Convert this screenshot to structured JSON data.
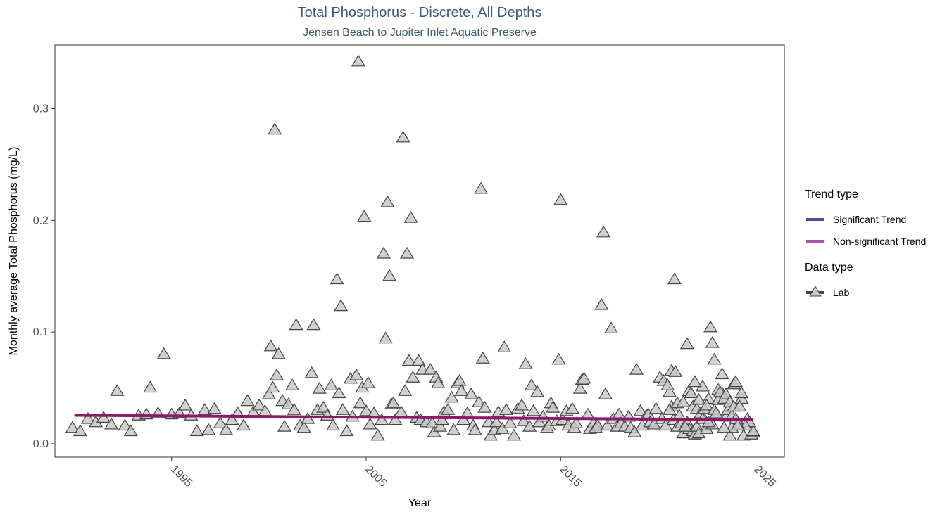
{
  "chart_data": {
    "type": "scatter",
    "title": "Total Phosphorus - Discrete, All Depths",
    "subtitle": "Jensen Beach to Jupiter Inlet Aquatic Preserve",
    "xlabel": "Year",
    "ylabel": "Monthly average Total Phosphorus (mg/L)",
    "xlim": [
      1989.0,
      2026.5
    ],
    "ylim": [
      -0.012,
      0.357
    ],
    "xticks": [
      "1995",
      "2005",
      "2015",
      "2025"
    ],
    "yticks": [
      "0.0",
      "0.1",
      "0.2",
      "0.3"
    ],
    "grid": false,
    "legend_position": "right",
    "trend_line": {
      "name": "Non-significant Trend",
      "color": "#8c1a6b",
      "x": [
        1990.0,
        2024.9
      ],
      "y": [
        0.0255,
        0.0215
      ]
    },
    "series": [
      {
        "name": "Lab",
        "marker": "triangle",
        "fill": "#c8c8c8",
        "stroke": "#444444",
        "points": [
          [
            1989.9,
            0.014
          ],
          [
            1990.3,
            0.011
          ],
          [
            1990.7,
            0.022
          ],
          [
            1991.1,
            0.019
          ],
          [
            1991.5,
            0.023
          ],
          [
            1991.9,
            0.017
          ],
          [
            1992.2,
            0.047
          ],
          [
            1992.6,
            0.016
          ],
          [
            1992.9,
            0.011
          ],
          [
            1993.3,
            0.025
          ],
          [
            1993.7,
            0.026
          ],
          [
            1993.9,
            0.05
          ],
          [
            1994.3,
            0.027
          ],
          [
            1994.6,
            0.08
          ],
          [
            1995.0,
            0.026
          ],
          [
            1995.4,
            0.027
          ],
          [
            1995.7,
            0.034
          ],
          [
            1996.0,
            0.025
          ],
          [
            1996.3,
            0.011
          ],
          [
            1996.7,
            0.03
          ],
          [
            1996.9,
            0.012
          ],
          [
            1997.2,
            0.031
          ],
          [
            1997.5,
            0.018
          ],
          [
            1997.8,
            0.012
          ],
          [
            1998.1,
            0.021
          ],
          [
            1998.4,
            0.027
          ],
          [
            1998.7,
            0.016
          ],
          [
            1998.9,
            0.038
          ],
          [
            1999.2,
            0.028
          ],
          [
            1999.5,
            0.034
          ],
          [
            1999.8,
            0.029
          ],
          [
            2000.0,
            0.044
          ],
          [
            2000.1,
            0.087
          ],
          [
            2000.2,
            0.05
          ],
          [
            2000.3,
            0.281
          ],
          [
            2000.4,
            0.061
          ],
          [
            2000.5,
            0.08
          ],
          [
            2000.7,
            0.038
          ],
          [
            2000.8,
            0.015
          ],
          [
            2001.0,
            0.035
          ],
          [
            2001.2,
            0.052
          ],
          [
            2001.3,
            0.03
          ],
          [
            2001.4,
            0.106
          ],
          [
            2001.6,
            0.016
          ],
          [
            2001.8,
            0.014
          ],
          [
            2002.0,
            0.022
          ],
          [
            2002.2,
            0.063
          ],
          [
            2002.3,
            0.106
          ],
          [
            2002.5,
            0.03
          ],
          [
            2002.6,
            0.049
          ],
          [
            2002.8,
            0.032
          ],
          [
            2003.0,
            0.025
          ],
          [
            2003.2,
            0.052
          ],
          [
            2003.3,
            0.016
          ],
          [
            2003.5,
            0.147
          ],
          [
            2003.6,
            0.045
          ],
          [
            2003.7,
            0.123
          ],
          [
            2003.8,
            0.03
          ],
          [
            2004.0,
            0.011
          ],
          [
            2004.2,
            0.058
          ],
          [
            2004.3,
            0.024
          ],
          [
            2004.5,
            0.061
          ],
          [
            2004.6,
            0.342
          ],
          [
            2004.7,
            0.036
          ],
          [
            2004.8,
            0.05
          ],
          [
            2004.9,
            0.203
          ],
          [
            2005.0,
            0.029
          ],
          [
            2005.1,
            0.054
          ],
          [
            2005.2,
            0.017
          ],
          [
            2005.4,
            0.027
          ],
          [
            2005.6,
            0.007
          ],
          [
            2005.8,
            0.021
          ],
          [
            2005.9,
            0.17
          ],
          [
            2006.0,
            0.094
          ],
          [
            2006.1,
            0.216
          ],
          [
            2006.2,
            0.15
          ],
          [
            2006.3,
            0.035
          ],
          [
            2006.4,
            0.036
          ],
          [
            2006.5,
            0.021
          ],
          [
            2006.8,
            0.028
          ],
          [
            2006.9,
            0.274
          ],
          [
            2007.0,
            0.047
          ],
          [
            2007.1,
            0.17
          ],
          [
            2007.2,
            0.074
          ],
          [
            2007.3,
            0.202
          ],
          [
            2007.4,
            0.059
          ],
          [
            2007.6,
            0.023
          ],
          [
            2007.7,
            0.074
          ],
          [
            2007.8,
            0.021
          ],
          [
            2007.9,
            0.066
          ],
          [
            2008.1,
            0.019
          ],
          [
            2008.3,
            0.066
          ],
          [
            2008.4,
            0.018
          ],
          [
            2008.5,
            0.01
          ],
          [
            2008.6,
            0.059
          ],
          [
            2008.7,
            0.054
          ],
          [
            2008.8,
            0.015
          ],
          [
            2008.9,
            0.021
          ],
          [
            2009.0,
            0.028
          ],
          [
            2009.2,
            0.03
          ],
          [
            2009.4,
            0.041
          ],
          [
            2009.5,
            0.012
          ],
          [
            2009.7,
            0.054
          ],
          [
            2009.8,
            0.056
          ],
          [
            2009.9,
            0.047
          ],
          [
            2010.0,
            0.021
          ],
          [
            2010.2,
            0.027
          ],
          [
            2010.4,
            0.044
          ],
          [
            2010.5,
            0.016
          ],
          [
            2010.6,
            0.012
          ],
          [
            2010.8,
            0.037
          ],
          [
            2010.9,
            0.228
          ],
          [
            2011.0,
            0.076
          ],
          [
            2011.1,
            0.032
          ],
          [
            2011.3,
            0.019
          ],
          [
            2011.4,
            0.007
          ],
          [
            2011.6,
            0.012
          ],
          [
            2011.7,
            0.019
          ],
          [
            2011.8,
            0.028
          ],
          [
            2012.0,
            0.013
          ],
          [
            2012.1,
            0.086
          ],
          [
            2012.2,
            0.03
          ],
          [
            2012.4,
            0.018
          ],
          [
            2012.6,
            0.007
          ],
          [
            2012.8,
            0.031
          ],
          [
            2013.0,
            0.034
          ],
          [
            2013.1,
            0.02
          ],
          [
            2013.2,
            0.071
          ],
          [
            2013.4,
            0.015
          ],
          [
            2013.5,
            0.052
          ],
          [
            2013.6,
            0.029
          ],
          [
            2013.8,
            0.046
          ],
          [
            2013.9,
            0.019
          ],
          [
            2014.1,
            0.024
          ],
          [
            2014.3,
            0.014
          ],
          [
            2014.4,
            0.016
          ],
          [
            2014.5,
            0.036
          ],
          [
            2014.6,
            0.032
          ],
          [
            2014.8,
            0.02
          ],
          [
            2014.9,
            0.075
          ],
          [
            2015.0,
            0.218
          ],
          [
            2015.1,
            0.021
          ],
          [
            2015.3,
            0.029
          ],
          [
            2015.4,
            0.016
          ],
          [
            2015.6,
            0.031
          ],
          [
            2015.7,
            0.014
          ],
          [
            2015.8,
            0.018
          ],
          [
            2016.0,
            0.049
          ],
          [
            2016.1,
            0.057
          ],
          [
            2016.2,
            0.058
          ],
          [
            2016.4,
            0.026
          ],
          [
            2016.5,
            0.013
          ],
          [
            2016.7,
            0.018
          ],
          [
            2016.8,
            0.014
          ],
          [
            2016.9,
            0.016
          ],
          [
            2017.1,
            0.124
          ],
          [
            2017.2,
            0.189
          ],
          [
            2017.3,
            0.044
          ],
          [
            2017.4,
            0.016
          ],
          [
            2017.6,
            0.103
          ],
          [
            2017.7,
            0.022
          ],
          [
            2017.9,
            0.015
          ],
          [
            2018.0,
            0.026
          ],
          [
            2018.1,
            0.018
          ],
          [
            2018.3,
            0.015
          ],
          [
            2018.5,
            0.024
          ],
          [
            2018.6,
            0.014
          ],
          [
            2018.8,
            0.01
          ],
          [
            2018.9,
            0.066
          ],
          [
            2019.1,
            0.029
          ],
          [
            2019.2,
            0.016
          ],
          [
            2019.4,
            0.025
          ],
          [
            2019.5,
            0.026
          ],
          [
            2019.6,
            0.019
          ],
          [
            2019.8,
            0.017
          ],
          [
            2019.9,
            0.031
          ],
          [
            2020.1,
            0.059
          ],
          [
            2020.2,
            0.022
          ],
          [
            2020.3,
            0.056
          ],
          [
            2020.4,
            0.016
          ],
          [
            2020.6,
            0.046
          ],
          [
            2020.7,
            0.033
          ],
          [
            2020.8,
            0.021
          ],
          [
            2021.0,
            0.015
          ],
          [
            2021.2,
            0.018
          ],
          [
            2021.3,
            0.009
          ],
          [
            2021.5,
            0.019
          ],
          [
            2021.6,
            0.013
          ],
          [
            2021.8,
            0.011
          ],
          [
            2021.9,
            0.008
          ],
          [
            2022.0,
            0.015
          ],
          [
            2022.1,
            0.009
          ],
          [
            2022.3,
            0.051
          ],
          [
            2022.5,
            0.013
          ],
          [
            2022.6,
            0.04
          ],
          [
            2022.8,
            0.017
          ],
          [
            2022.9,
            0.075
          ],
          [
            2023.0,
            0.026
          ],
          [
            2023.1,
            0.048
          ],
          [
            2023.3,
            0.045
          ],
          [
            2023.5,
            0.024
          ],
          [
            2023.7,
            0.007
          ],
          [
            2023.9,
            0.053
          ],
          [
            2024.0,
            0.055
          ],
          [
            2024.2,
            0.017
          ],
          [
            2024.3,
            0.04
          ],
          [
            2024.4,
            0.007
          ],
          [
            2024.6,
            0.022
          ],
          [
            2024.8,
            0.008
          ],
          [
            2024.9,
            0.01
          ],
          [
            2024.9,
            0.011
          ],
          [
            2024.7,
            0.019
          ],
          [
            2024.5,
            0.016
          ],
          [
            2024.1,
            0.017
          ],
          [
            2023.8,
            0.014
          ],
          [
            2023.4,
            0.014
          ]
        ]
      },
      {
        "name": "Lab",
        "marker": "triangle",
        "fill": "#c8c8c8",
        "stroke": "#444444",
        "points": [
          [
            2020.85,
            0.147
          ],
          [
            2020.5,
            0.052
          ],
          [
            2020.7,
            0.065
          ],
          [
            2020.9,
            0.064
          ],
          [
            2020.6,
            0.03
          ],
          [
            2021.0,
            0.036
          ],
          [
            2021.1,
            0.025
          ],
          [
            2021.3,
            0.037
          ],
          [
            2021.4,
            0.015
          ],
          [
            2021.5,
            0.089
          ],
          [
            2021.6,
            0.047
          ],
          [
            2021.7,
            0.045
          ],
          [
            2021.8,
            0.033
          ],
          [
            2021.9,
            0.055
          ],
          [
            2022.0,
            0.031
          ],
          [
            2022.1,
            0.039
          ],
          [
            2022.2,
            0.027
          ],
          [
            2022.3,
            0.022
          ],
          [
            2022.4,
            0.031
          ],
          [
            2022.5,
            0.034
          ],
          [
            2022.6,
            0.019
          ],
          [
            2022.7,
            0.104
          ],
          [
            2022.8,
            0.09
          ],
          [
            2022.9,
            0.03
          ],
          [
            2023.0,
            0.027
          ],
          [
            2023.1,
            0.039
          ],
          [
            2023.2,
            0.046
          ],
          [
            2023.3,
            0.062
          ],
          [
            2023.4,
            0.04
          ],
          [
            2023.5,
            0.044
          ],
          [
            2023.6,
            0.03
          ],
          [
            2023.7,
            0.037
          ],
          [
            2023.8,
            0.025
          ],
          [
            2023.9,
            0.033
          ],
          [
            2024.0,
            0.022
          ],
          [
            2024.1,
            0.016
          ],
          [
            2024.2,
            0.033
          ],
          [
            2024.3,
            0.045
          ]
        ]
      }
    ]
  },
  "legend": {
    "trend_title": "Trend type",
    "trend_items": [
      {
        "label": "Significant Trend",
        "color": "#4a4aad"
      },
      {
        "label": "Non-significant Trend",
        "color": "#b0509a"
      }
    ],
    "data_title": "Data type",
    "data_items": [
      {
        "label": "Lab",
        "fill": "#c8c8c8",
        "stroke": "#444444"
      }
    ]
  }
}
